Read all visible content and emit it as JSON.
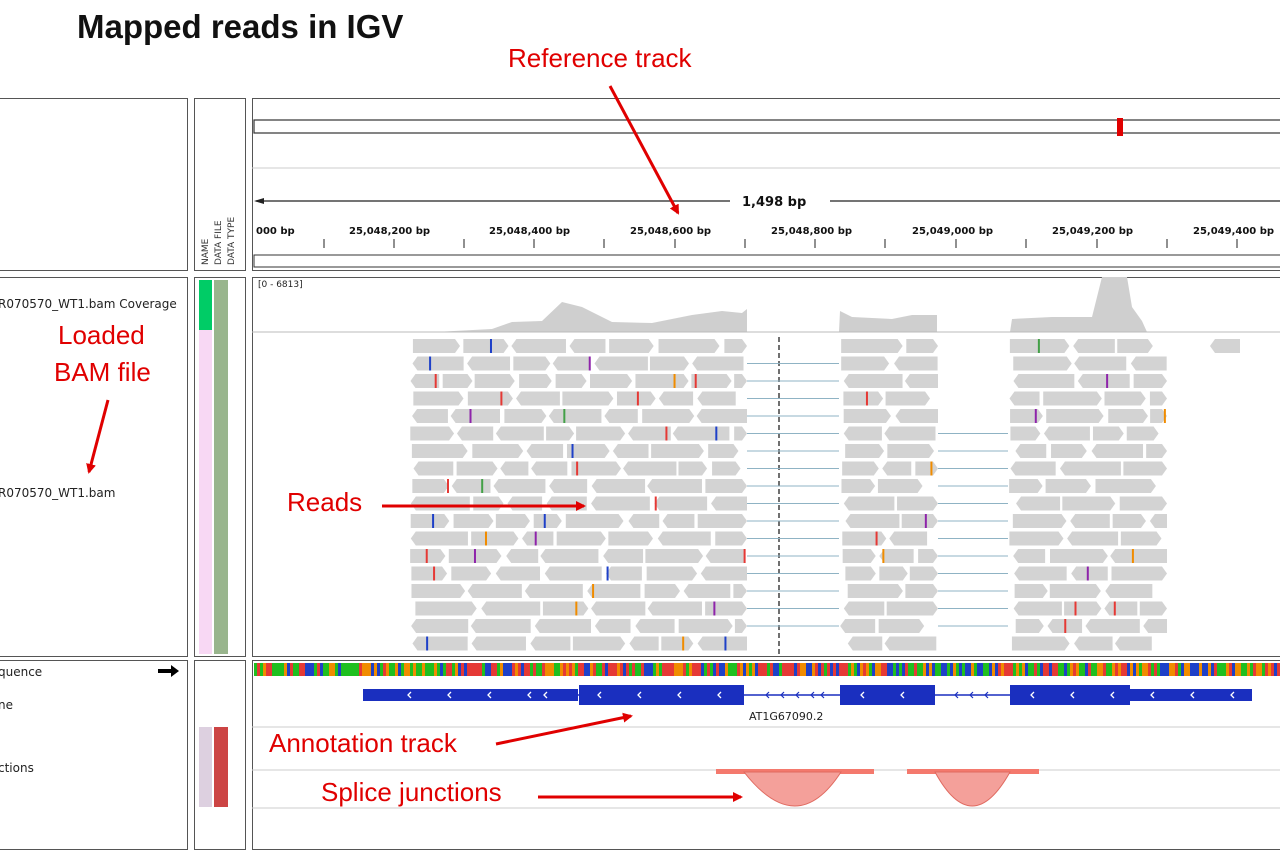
{
  "slide": {
    "title": "Mapped reads in IGV"
  },
  "annotations": {
    "reference_track": "Reference track",
    "loaded_bam_line1": "Loaded",
    "loaded_bam_line2": "BAM file",
    "reads": "Reads",
    "annotation_track": "Annotation track",
    "splice_junctions": "Splice junctions"
  },
  "igv": {
    "attribute_headers": [
      "NAME",
      "DATA FILE",
      "DATA TYPE"
    ],
    "ruler": {
      "span_label": "1,498 bp",
      "tick_labels": [
        "000 bp",
        "25,048,200 bp",
        "25,048,400 bp",
        "25,048,600 bp",
        "25,048,800 bp",
        "25,049,000 bp",
        "25,049,200 bp",
        "25,049,400 bp"
      ]
    },
    "tracks": {
      "coverage_name": "R070570_WT1.bam Coverage",
      "coverage_range": "[0 - 6813]",
      "bam_name": "R070570_WT1.bam",
      "sequence_name": "quence",
      "gene_name": "ne",
      "junctions_name": "ctions"
    },
    "gene_label": "AT1G67090.2",
    "colors": {
      "annotation_red": "#e00000",
      "read_gray": "#d3d3d3",
      "gene_blue": "#1a2fbf",
      "junction_fill": "#f4a09a",
      "coverage_green": "#00cc66",
      "attr_pink": "#f8d8f4",
      "attr_green": "#99b58d",
      "attr_red": "#cc4444"
    },
    "icons": [
      "right-arrow-icon"
    ]
  }
}
